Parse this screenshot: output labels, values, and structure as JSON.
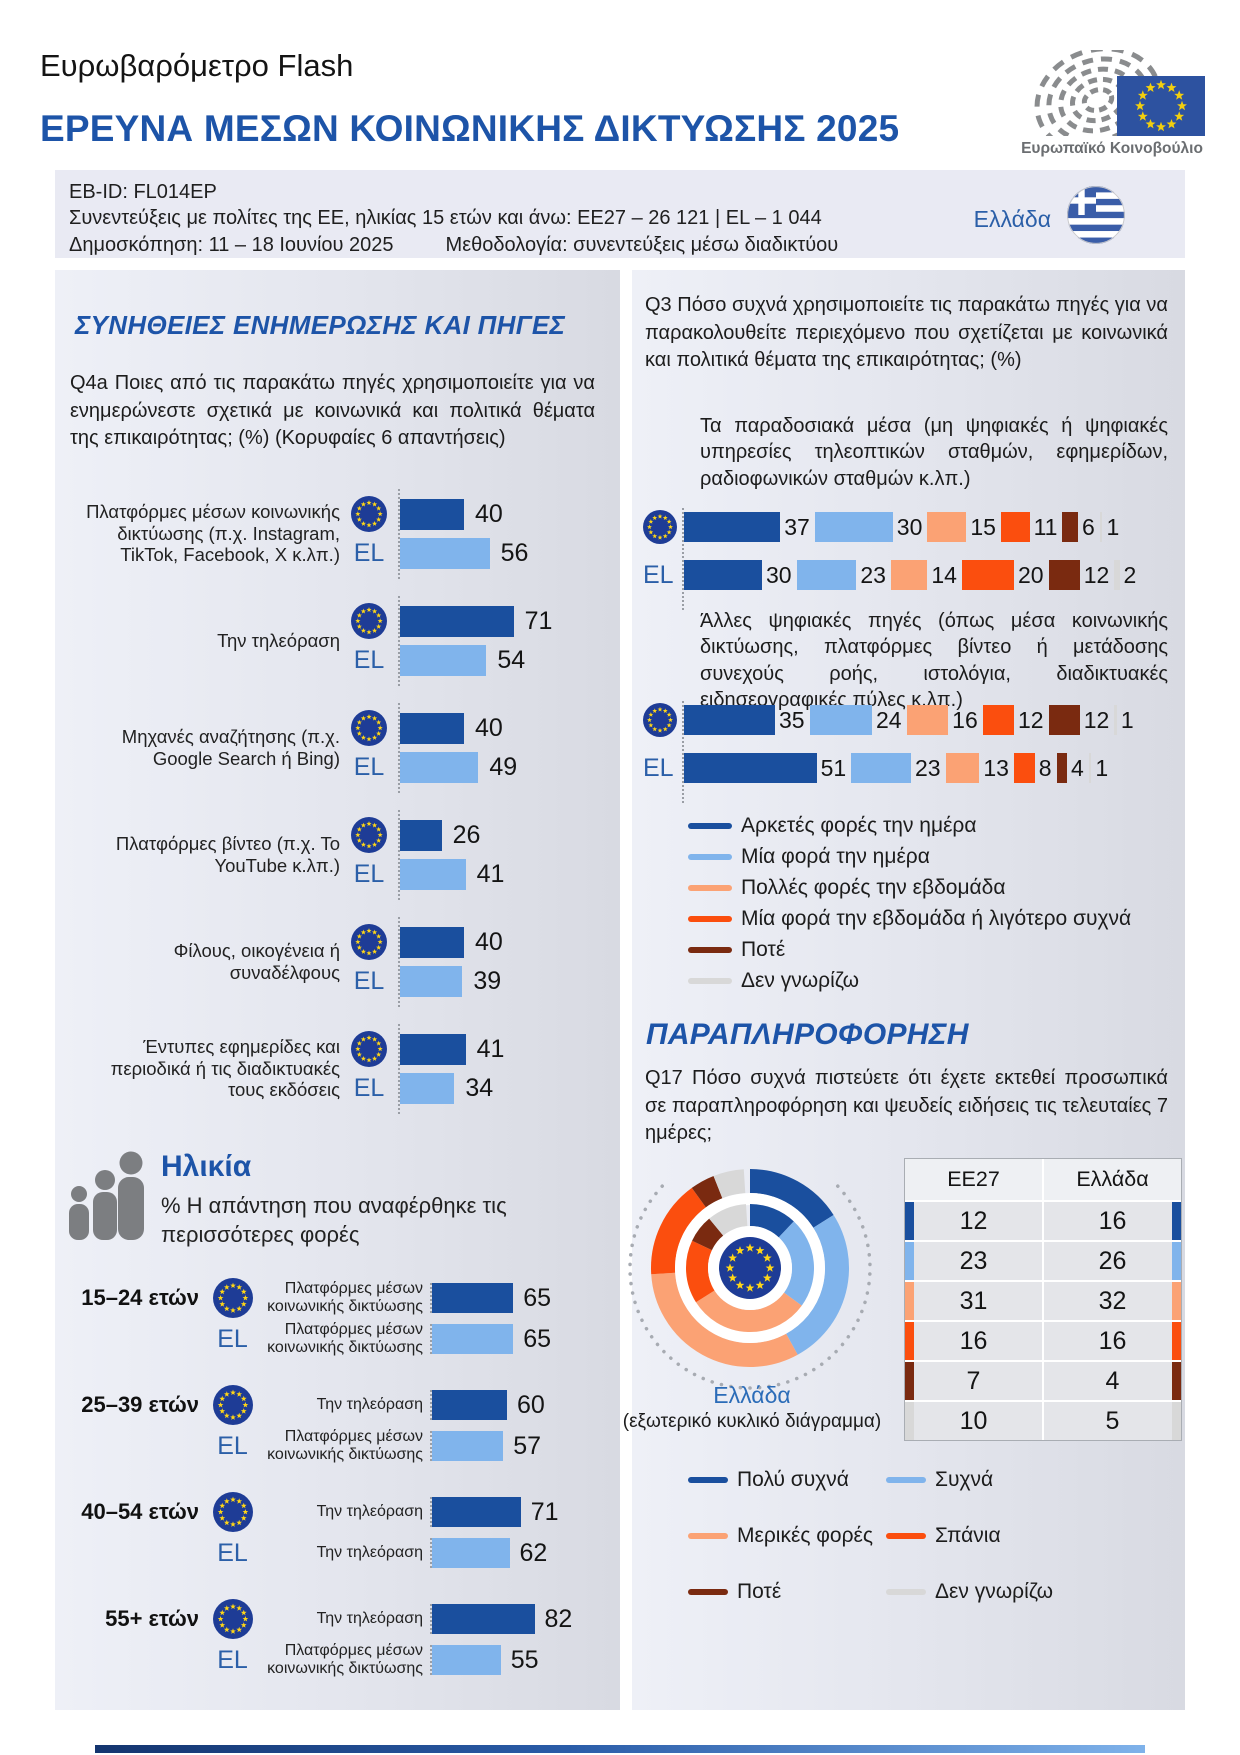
{
  "header": {
    "eyebrow": "Ευρωβαρόμετρο Flash",
    "title": "ΕΡΕΥΝΑ ΜΕΣΩΝ ΚΟΙΝΩΝΙΚΗΣ ΔΙΚΤΥΩΣΗΣ 2025",
    "logo_caption": "Ευρωπαϊκό Κοινοβούλιο"
  },
  "meta": {
    "eb_id": "EB-ID: FL014EP",
    "sample": "Συνεντεύξεις με πολίτες της ΕΕ, ηλικίας 15 ετών και άνω: ΕΕ27 – 26 121 | EL – 1 044",
    "fieldwork": "Δημοσκόπηση: 11 – 18 Ιουνίου 2025",
    "methodology": "Μεθοδολογία: συνεντεύξεις μέσω διαδικτύου",
    "country": "Ελλάδα"
  },
  "left_panel": {
    "section_title": "ΣΥΝΗΘΕΙΕΣ ΕΝΗΜΕΡΩΣΗΣ ΚΑΙ ΠΗΓΕΣ",
    "question": "Q4a Ποιες από τις παρακάτω πηγές χρησιμοποιείτε για να ενημερώνεστε σχετικά με κοινωνικά και πολιτικά θέματα της επικαιρότητας; (%) (Κορυφαίες 6 απαντήσεις)",
    "age_title": "Ηλικία",
    "age_subtitle": "% Η απάντηση που αναφέρθηκε τις περισσότερες φορές"
  },
  "right_panel": {
    "question_q3": "Q3 Πόσο συχνά χρησιμοποιείτε τις παρακάτω πηγές για να παρακολουθείτε περιεχόμενο που σχετίζεται με κοινωνικά και πολιτικά θέματα της επικαιρότητας; (%)",
    "section_title": "ΠΑΡΑΠΛΗΡΟΦΟΡΗΣΗ",
    "question_q17": "Q17 Πόσο συχνά πιστεύετε ότι έχετε εκτεθεί προσωπικά σε παραπληροφόρηση και ψευδείς ειδήσεις τις τελευταίες 7 ημέρες;",
    "donut_label_country": "Ελλάδα",
    "donut_label_note": "(εξωτερικό κυκλικό διάγραμμα)"
  },
  "palette": {
    "eu_dark": "#1a4f9e",
    "el_light": "#80b4ec",
    "title_blue": "#1d54a8",
    "scale_colors": [
      "#1a4f9e",
      "#80b4ec",
      "#fba274",
      "#fb4e0e",
      "#7a2a10",
      "#d8d8d8"
    ]
  },
  "chart_data": [
    {
      "id": "q4a_top_sources",
      "type": "bar",
      "orientation": "horizontal",
      "unit": "%",
      "categories": [
        "Πλατφόρμες μέσων κοινωνικής δικτύωσης (π.χ. Instagram, TikTok, Facebook, X κ.λπ.)",
        "Την τηλεόραση",
        "Μηχανές αναζήτησης (π.χ. Google Search ή Bing)",
        "Πλατφόρμες βίντεο (π.χ. Το YouTube κ.λπ.)",
        "Φίλους, οικογένεια ή συναδέλφους",
        "Έντυπες εφημερίδες και περιοδικά ή τις διαδικτυακές τους εκδόσεις"
      ],
      "series": [
        {
          "name": "ΕΕ27",
          "values": [
            40,
            71,
            40,
            26,
            40,
            41
          ]
        },
        {
          "name": "EL",
          "values": [
            56,
            54,
            49,
            41,
            39,
            34
          ]
        }
      ],
      "xlim": [
        0,
        100
      ]
    },
    {
      "id": "q3_traditional",
      "type": "stacked_bar",
      "subtitle": "Τα παραδοσιακά μέσα (μη ψηφιακές ή ψηφιακές υπηρεσίες τηλεοπτικών σταθμών, εφημερίδων, ραδιοφωνικών σταθμών κ.λπ.)",
      "legend": [
        "Αρκετές φορές την ημέρα",
        "Μία φορά την ημέρα",
        "Πολλές φορές την εβδομάδα",
        "Μία φορά την εβδομάδα ή λιγότερο συχνά",
        "Ποτέ",
        "Δεν γνωρίζω"
      ],
      "rows": [
        {
          "name": "ΕΕ27",
          "values": [
            37,
            30,
            15,
            11,
            6,
            1
          ]
        },
        {
          "name": "EL",
          "values": [
            30,
            23,
            14,
            20,
            12,
            2
          ]
        }
      ]
    },
    {
      "id": "q3_digital",
      "type": "stacked_bar",
      "subtitle": "Άλλες ψηφιακές πηγές (όπως μέσα κοινωνικής δικτύωσης, πλατφόρμες βίντεο ή μετάδοσης συνεχούς ροής, ιστολόγια, διαδικτυακές ειδησεογραφικές πύλες κ.λπ.)",
      "legend": [
        "Αρκετές φορές την ημέρα",
        "Μία φορά την ημέρα",
        "Πολλές φορές την εβδομάδα",
        "Μία φορά την εβδομάδα ή λιγότερο συχνά",
        "Ποτέ",
        "Δεν γνωρίζω"
      ],
      "rows": [
        {
          "name": "ΕΕ27",
          "values": [
            35,
            24,
            16,
            12,
            12,
            1
          ]
        },
        {
          "name": "EL",
          "values": [
            51,
            23,
            13,
            8,
            4,
            1
          ]
        }
      ]
    },
    {
      "id": "q4a_by_age",
      "type": "bar",
      "orientation": "horizontal",
      "unit": "%",
      "rows": [
        {
          "age": "15–24 ετών",
          "eu": {
            "label": "Πλατφόρμες μέσων κοινωνικής δικτύωσης",
            "value": 65
          },
          "el": {
            "label": "Πλατφόρμες μέσων κοινωνικής δικτύωσης",
            "value": 65
          }
        },
        {
          "age": "25–39 ετών",
          "eu": {
            "label": "Την τηλεόραση",
            "value": 60
          },
          "el": {
            "label": "Πλατφόρμες μέσων κοινωνικής δικτύωσης",
            "value": 57
          }
        },
        {
          "age": "40–54 ετών",
          "eu": {
            "label": "Την τηλεόραση",
            "value": 71
          },
          "el": {
            "label": "Την τηλεόραση",
            "value": 62
          }
        },
        {
          "age": "55+ ετών",
          "eu": {
            "label": "Την τηλεόραση",
            "value": 82
          },
          "el": {
            "label": "Πλατφόρμες μέσων κοινωνικής δικτύωσης",
            "value": 55
          }
        }
      ]
    },
    {
      "id": "q17_exposure",
      "type": "donut",
      "legend": [
        "Πολύ συχνά",
        "Συχνά",
        "Μερικές φορές",
        "Σπάνια",
        "Ποτέ",
        "Δεν γνωρίζω"
      ],
      "table_columns": [
        "ΕΕ27",
        "Ελλάδα"
      ],
      "series": [
        {
          "name": "ΕΕ27",
          "ring": "inner",
          "values": [
            12,
            23,
            31,
            16,
            7,
            10
          ]
        },
        {
          "name": "Ελλάδα",
          "ring": "outer",
          "values": [
            16,
            26,
            32,
            16,
            4,
            5
          ]
        }
      ]
    }
  ]
}
